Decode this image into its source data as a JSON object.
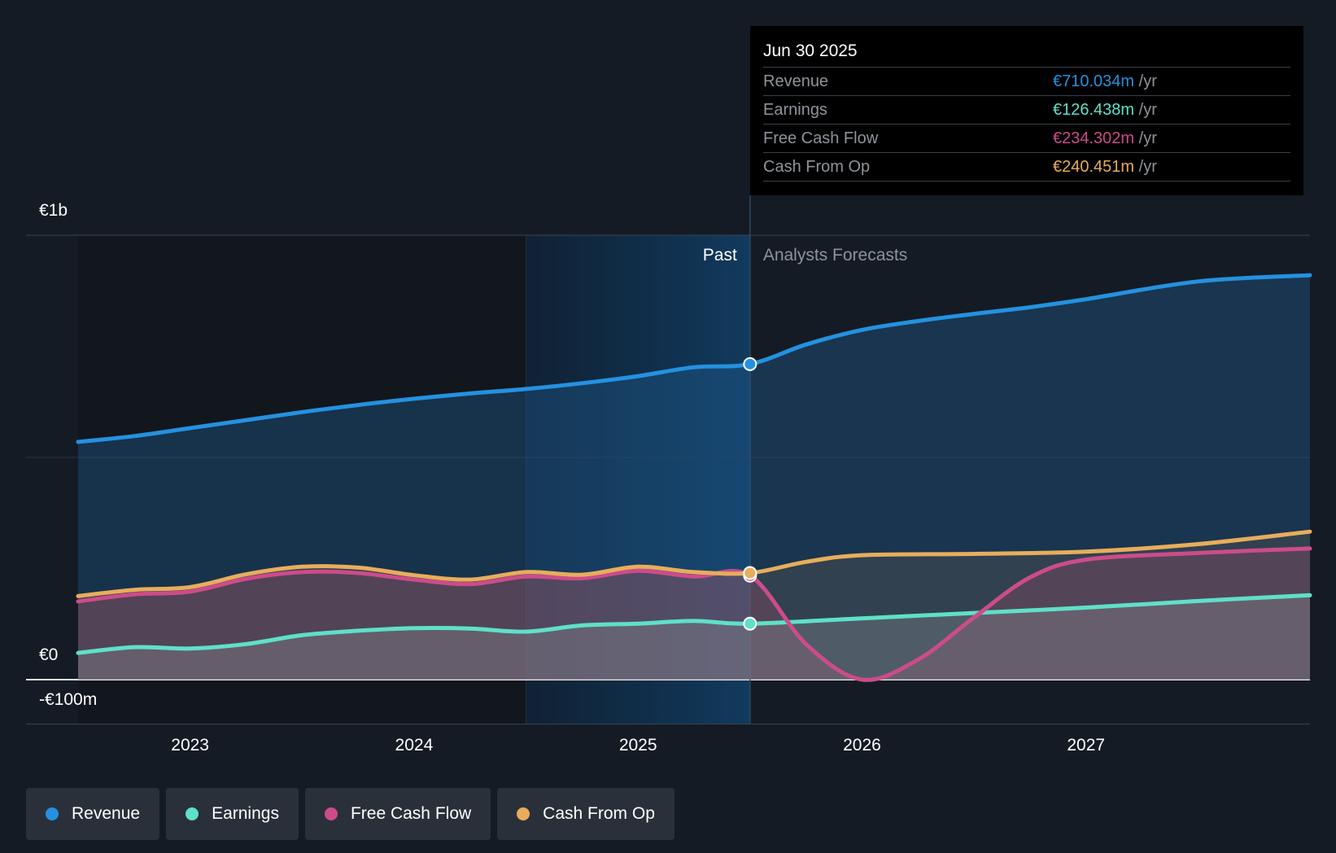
{
  "tooltip": {
    "date": "Jun 30 2025",
    "unit": "/yr",
    "rows": [
      {
        "label": "Revenue",
        "value": "€710.034m"
      },
      {
        "label": "Earnings",
        "value": "€126.438m"
      },
      {
        "label": "Free Cash Flow",
        "value": "€234.302m"
      },
      {
        "label": "Cash From Op",
        "value": "€240.451m"
      }
    ]
  },
  "labels": {
    "past": "Past",
    "forecast": "Analysts Forecasts"
  },
  "legend": [
    {
      "label": "Revenue"
    },
    {
      "label": "Earnings"
    },
    {
      "label": "Free Cash Flow"
    },
    {
      "label": "Cash From Op"
    }
  ],
  "chart_data": {
    "type": "area",
    "x_tick_labels": [
      "2023",
      "2024",
      "2025",
      "2026",
      "2027"
    ],
    "y_tick_labels": [
      "€1b",
      "€0",
      "-€100m"
    ],
    "ylim": [
      -100,
      1000
    ],
    "y_unit": "€m",
    "xlim": [
      2022.5,
      2028.0
    ],
    "past_region_start": 2024.5,
    "divider_x": 2025.5,
    "highlight_date": "Jun 30 2025",
    "colors": {
      "Revenue": "#2491e0",
      "Earnings": "#5fe0c8",
      "Free Cash Flow": "#cc4c8a",
      "Cash From Op": "#e8ad5c"
    },
    "series": [
      {
        "name": "Revenue",
        "points": [
          [
            2022.5,
            535
          ],
          [
            2022.75,
            548
          ],
          [
            2023.0,
            566
          ],
          [
            2023.25,
            584
          ],
          [
            2023.5,
            602
          ],
          [
            2023.75,
            618
          ],
          [
            2024.0,
            632
          ],
          [
            2024.25,
            644
          ],
          [
            2024.5,
            654
          ],
          [
            2024.75,
            667
          ],
          [
            2025.0,
            683
          ],
          [
            2025.25,
            703
          ],
          [
            2025.5,
            710
          ],
          [
            2025.75,
            754
          ],
          [
            2026.0,
            787
          ],
          [
            2026.25,
            807
          ],
          [
            2026.5,
            823
          ],
          [
            2026.75,
            838
          ],
          [
            2027.0,
            856
          ],
          [
            2027.5,
            896
          ],
          [
            2028.0,
            910
          ]
        ]
      },
      {
        "name": "Earnings",
        "points": [
          [
            2022.5,
            60
          ],
          [
            2022.75,
            73
          ],
          [
            2023.0,
            70
          ],
          [
            2023.25,
            80
          ],
          [
            2023.5,
            100
          ],
          [
            2023.75,
            110
          ],
          [
            2024.0,
            116
          ],
          [
            2024.25,
            115
          ],
          [
            2024.5,
            108
          ],
          [
            2024.75,
            122
          ],
          [
            2025.0,
            126
          ],
          [
            2025.25,
            132
          ],
          [
            2025.5,
            126
          ],
          [
            2026.0,
            138
          ],
          [
            2026.5,
            150
          ],
          [
            2027.0,
            162
          ],
          [
            2027.5,
            177
          ],
          [
            2028.0,
            190
          ]
        ]
      },
      {
        "name": "Free Cash Flow",
        "points": [
          [
            2022.5,
            176
          ],
          [
            2022.75,
            192
          ],
          [
            2023.0,
            198
          ],
          [
            2023.25,
            227
          ],
          [
            2023.5,
            242
          ],
          [
            2023.75,
            240
          ],
          [
            2024.0,
            225
          ],
          [
            2024.25,
            215
          ],
          [
            2024.5,
            232
          ],
          [
            2024.75,
            228
          ],
          [
            2025.0,
            245
          ],
          [
            2025.25,
            232
          ],
          [
            2025.5,
            234
          ],
          [
            2025.75,
            80
          ],
          [
            2026.0,
            0
          ],
          [
            2026.25,
            45
          ],
          [
            2026.5,
            140
          ],
          [
            2026.75,
            230
          ],
          [
            2027.0,
            270
          ],
          [
            2027.5,
            285
          ],
          [
            2028.0,
            295
          ]
        ]
      },
      {
        "name": "Cash From Op",
        "points": [
          [
            2022.5,
            188
          ],
          [
            2022.75,
            202
          ],
          [
            2023.0,
            208
          ],
          [
            2023.25,
            237
          ],
          [
            2023.5,
            254
          ],
          [
            2023.75,
            252
          ],
          [
            2024.0,
            235
          ],
          [
            2024.25,
            225
          ],
          [
            2024.5,
            242
          ],
          [
            2024.75,
            236
          ],
          [
            2025.0,
            254
          ],
          [
            2025.25,
            242
          ],
          [
            2025.5,
            240
          ],
          [
            2025.75,
            265
          ],
          [
            2026.0,
            280
          ],
          [
            2026.5,
            283
          ],
          [
            2027.0,
            288
          ],
          [
            2027.5,
            305
          ],
          [
            2028.0,
            333
          ]
        ]
      }
    ]
  }
}
